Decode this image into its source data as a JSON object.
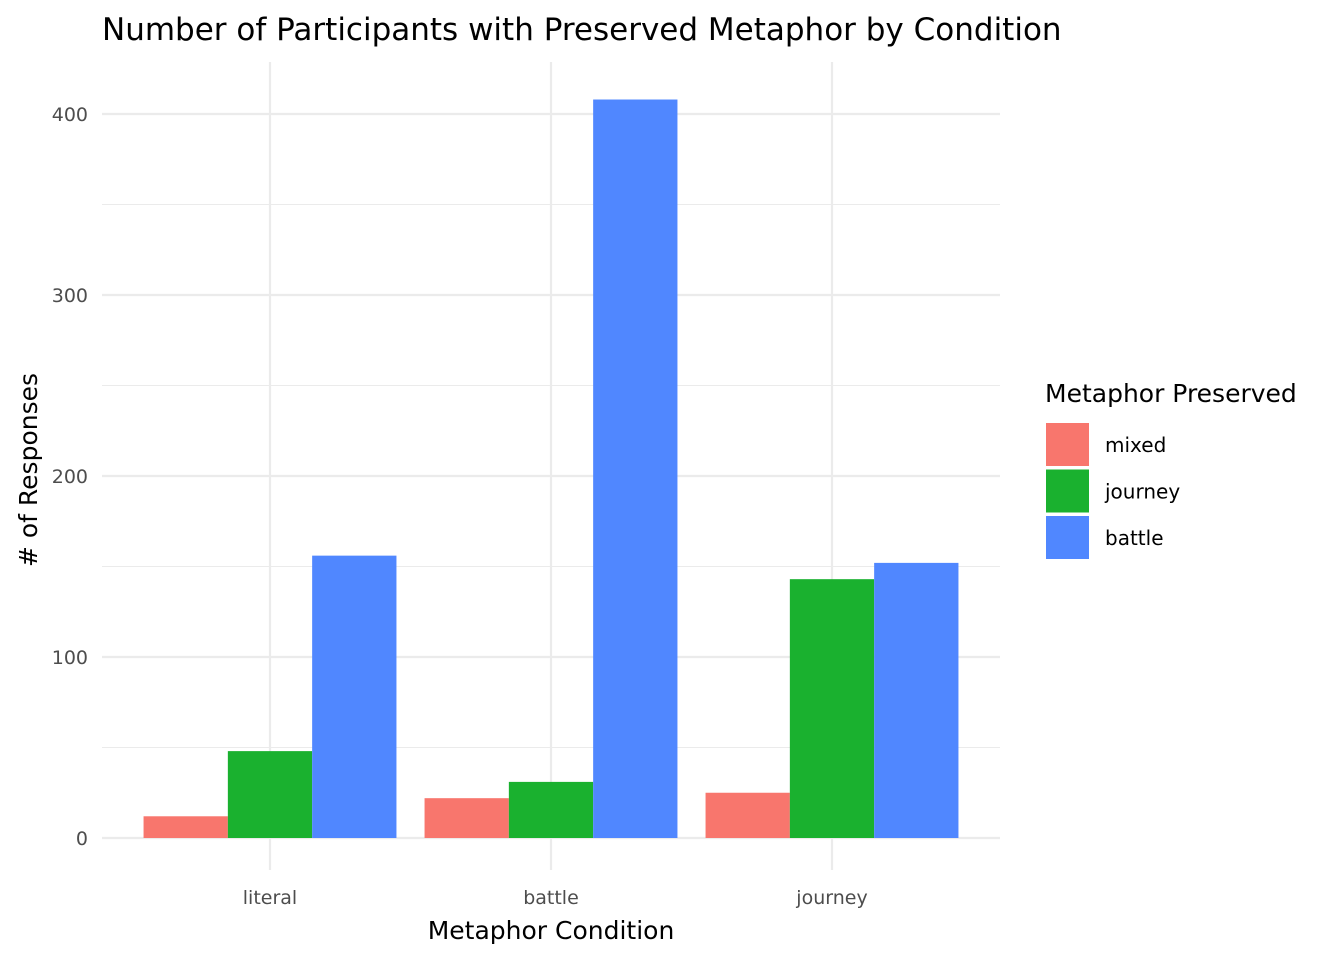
{
  "chart_data": {
    "type": "bar",
    "title": "Number of Participants with Preserved Metaphor by Condition",
    "xlabel": "Metaphor Condition",
    "ylabel": "# of Responses",
    "categories": [
      "literal",
      "battle",
      "journey"
    ],
    "series": [
      {
        "name": "mixed",
        "color": "#F8766D",
        "values": [
          12,
          22,
          25
        ]
      },
      {
        "name": "journey",
        "color": "#1AB12F",
        "values": [
          48,
          31,
          143
        ]
      },
      {
        "name": "battle",
        "color": "#5087FF",
        "values": [
          156,
          408,
          152
        ]
      }
    ],
    "ylim": [
      0,
      420
    ],
    "yticks": [
      0,
      100,
      200,
      300,
      400
    ],
    "grid": true,
    "legend": {
      "title": "Metaphor Preserved",
      "placement": "right"
    }
  }
}
